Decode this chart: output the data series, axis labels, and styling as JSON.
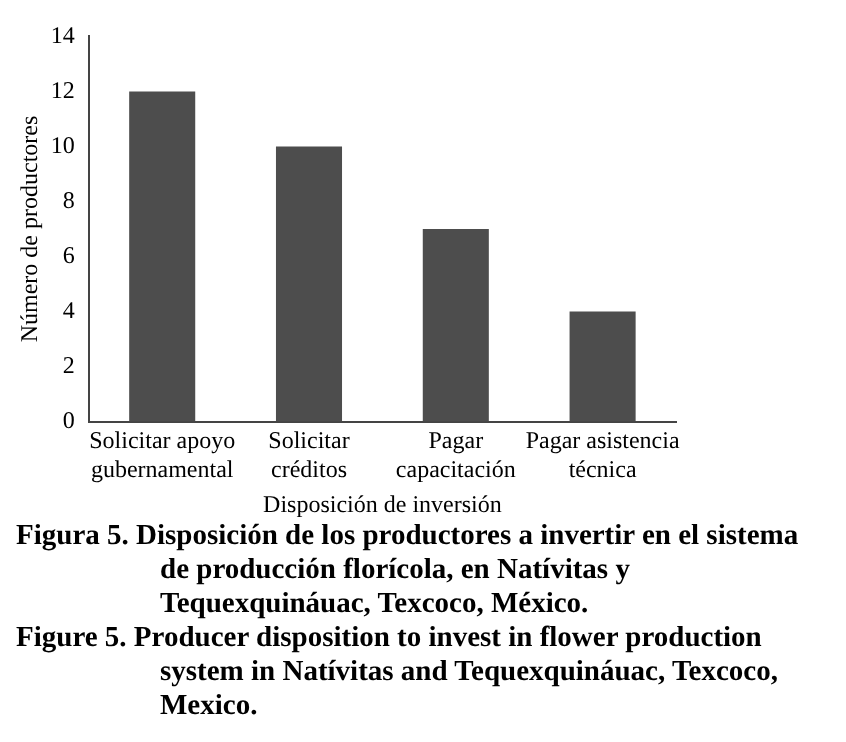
{
  "chart_data": {
    "type": "bar",
    "xlabel": "Disposición de inversión",
    "ylabel": "Número de productores",
    "categories": [
      "Solicitar apoyo gubernamental",
      "Solicitar créditos",
      "Pagar capacitación",
      "Pagar asistencia técnica"
    ],
    "values": [
      12,
      10,
      7,
      4
    ],
    "color": "#4d4d4d",
    "ylim": [
      0,
      14
    ],
    "yticks": [
      0,
      2,
      4,
      6,
      8,
      10,
      12,
      14
    ],
    "grid": false,
    "legend": false,
    "annotations": [
      "Figura 5. Disposición de los productores a invertir en el sistema de producción florícola, en Natívitas y Tequexquináuac, Texcoco, México.",
      "Figure 5. Producer disposition to invest in flower production system in Natívitas and Tequexquináuac, Texcoco, Mexico."
    ]
  }
}
